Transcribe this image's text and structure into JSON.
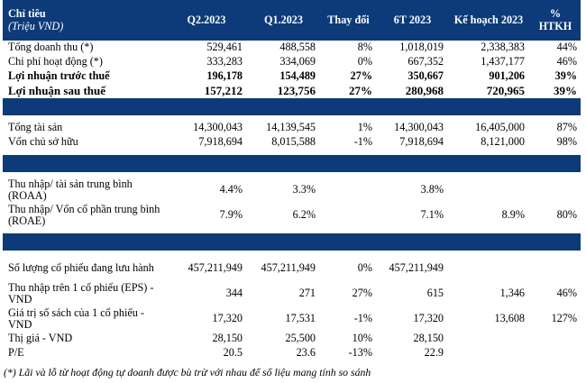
{
  "header": {
    "col0_title": "Chỉ tiêu",
    "col0_sub": "(Triệu VND)",
    "cols": [
      "Q2.2023",
      "Q1.2023",
      "Thay đổi",
      "6T 2023",
      "Kế hoạch 2023",
      "% HTKH"
    ]
  },
  "group1": [
    {
      "label": "Tổng doanh thu (*)",
      "bold": false,
      "v": [
        "529,461",
        "488,558",
        "8%",
        "1,018,019",
        "2,338,383",
        "44%"
      ]
    },
    {
      "label": "Chi phí hoạt động (*)",
      "bold": false,
      "v": [
        "333,283",
        "334,069",
        "0%",
        "667,352",
        "1,437,177",
        "46%"
      ]
    },
    {
      "label": "Lợi nhuận trước thuế",
      "bold": true,
      "v": [
        "196,178",
        "154,489",
        "27%",
        "350,667",
        "901,206",
        "39%"
      ]
    },
    {
      "label": "Lợi nhuận sau thuế",
      "bold": true,
      "v": [
        "157,212",
        "123,756",
        "27%",
        "280,968",
        "720,965",
        "39%"
      ]
    }
  ],
  "group2": [
    {
      "label": "Tổng tài sản",
      "v": [
        "14,300,043",
        "14,139,545",
        "1%",
        "14,300,043",
        "16,405,000",
        "87%"
      ]
    },
    {
      "label": "Vốn chủ sở hữu",
      "v": [
        "7,918,694",
        "8,015,588",
        "-1%",
        "7,918,694",
        "8,121,000",
        "98%"
      ]
    }
  ],
  "group3": [
    {
      "label": "Thu nhập/ tài sản trung bình (ROAA)",
      "v": [
        "4.4%",
        "3.3%",
        "",
        "3.8%",
        "",
        ""
      ]
    },
    {
      "label": "Thu nhập/ Vốn cổ phần trung bình (ROAE)",
      "v": [
        "7.9%",
        "6.2%",
        "",
        "7.1%",
        "8.9%",
        "80%"
      ]
    }
  ],
  "group4": [
    {
      "label": "Số lượng cổ phiếu đang lưu hành",
      "v": [
        "457,211,949",
        "457,211,949",
        "0%",
        "457,211,949",
        "",
        ""
      ]
    },
    {
      "label": "Thu nhập trên 1 cổ phiếu (EPS) - VND",
      "v": [
        "344",
        "271",
        "27%",
        "615",
        "1,346",
        "46%"
      ]
    },
    {
      "label": "Giá trị sổ sách của 1 cổ phiếu - VND",
      "v": [
        "17,320",
        "17,531",
        "-1%",
        "17,320",
        "13,608",
        "127%"
      ]
    },
    {
      "label": "Thị giá - VND",
      "v": [
        "28,150",
        "25,500",
        "10%",
        "28,150",
        "",
        ""
      ]
    },
    {
      "label": "P/E",
      "v": [
        "20.5",
        "23.6",
        "-13%",
        "22.9",
        "",
        ""
      ]
    }
  ],
  "footnote": "(*) Lãi và lỗ từ hoạt động tự doanh được bù trừ với nhau để số liệu mang tính so sánh"
}
